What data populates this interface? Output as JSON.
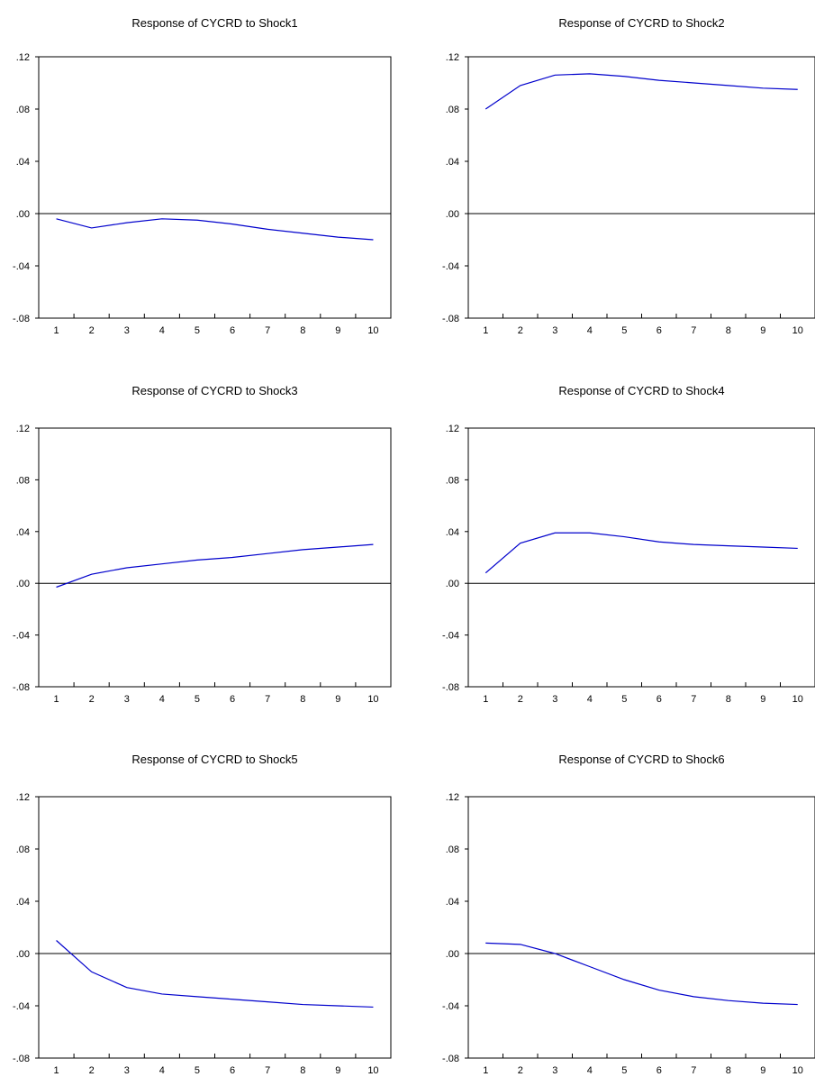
{
  "chart_data": [
    {
      "type": "line",
      "title": "Response of CYCRD to Shock1",
      "x": [
        1,
        2,
        3,
        4,
        5,
        6,
        7,
        8,
        9,
        10
      ],
      "series": [
        {
          "values": [
            -0.004,
            -0.011,
            -0.007,
            -0.004,
            -0.005,
            -0.008,
            -0.012,
            -0.015,
            -0.018,
            -0.02
          ]
        }
      ],
      "ylim": [
        -0.08,
        0.12
      ],
      "yticks": [
        0.12,
        0.08,
        0.04,
        0.0,
        -0.04,
        -0.08
      ],
      "ytick_labels": [
        ".12",
        ".08",
        ".04",
        ".00",
        "-.04",
        "-.08"
      ],
      "xtick_labels": [
        "1",
        "2",
        "3",
        "4",
        "5",
        "6",
        "7",
        "8",
        "9",
        "10"
      ],
      "series_color": "#0000cc",
      "zero_line": true
    },
    {
      "type": "line",
      "title": "Response of CYCRD to Shock2",
      "x": [
        1,
        2,
        3,
        4,
        5,
        6,
        7,
        8,
        9,
        10
      ],
      "series": [
        {
          "values": [
            0.08,
            0.098,
            0.106,
            0.107,
            0.105,
            0.102,
            0.1,
            0.098,
            0.096,
            0.095
          ]
        }
      ],
      "ylim": [
        -0.08,
        0.12
      ],
      "yticks": [
        0.12,
        0.08,
        0.04,
        0.0,
        -0.04,
        -0.08
      ],
      "ytick_labels": [
        ".12",
        ".08",
        ".04",
        ".00",
        "-.04",
        "-.08"
      ],
      "xtick_labels": [
        "1",
        "2",
        "3",
        "4",
        "5",
        "6",
        "7",
        "8",
        "9",
        "10"
      ],
      "series_color": "#0000cc",
      "zero_line": true
    },
    {
      "type": "line",
      "title": "Response of CYCRD to Shock3",
      "x": [
        1,
        2,
        3,
        4,
        5,
        6,
        7,
        8,
        9,
        10
      ],
      "series": [
        {
          "values": [
            -0.003,
            0.007,
            0.012,
            0.015,
            0.018,
            0.02,
            0.023,
            0.026,
            0.028,
            0.03
          ]
        }
      ],
      "ylim": [
        -0.08,
        0.12
      ],
      "yticks": [
        0.12,
        0.08,
        0.04,
        0.0,
        -0.04,
        -0.08
      ],
      "ytick_labels": [
        ".12",
        ".08",
        ".04",
        ".00",
        "-.04",
        "-.08"
      ],
      "xtick_labels": [
        "1",
        "2",
        "3",
        "4",
        "5",
        "6",
        "7",
        "8",
        "9",
        "10"
      ],
      "series_color": "#0000cc",
      "zero_line": true
    },
    {
      "type": "line",
      "title": "Response of CYCRD to Shock4",
      "x": [
        1,
        2,
        3,
        4,
        5,
        6,
        7,
        8,
        9,
        10
      ],
      "series": [
        {
          "values": [
            0.008,
            0.031,
            0.039,
            0.039,
            0.036,
            0.032,
            0.03,
            0.029,
            0.028,
            0.027
          ]
        }
      ],
      "ylim": [
        -0.08,
        0.12
      ],
      "yticks": [
        0.12,
        0.08,
        0.04,
        0.0,
        -0.04,
        -0.08
      ],
      "ytick_labels": [
        ".12",
        ".08",
        ".04",
        ".00",
        "-.04",
        "-.08"
      ],
      "xtick_labels": [
        "1",
        "2",
        "3",
        "4",
        "5",
        "6",
        "7",
        "8",
        "9",
        "10"
      ],
      "series_color": "#0000cc",
      "zero_line": true
    },
    {
      "type": "line",
      "title": "Response of CYCRD to Shock5",
      "x": [
        1,
        2,
        3,
        4,
        5,
        6,
        7,
        8,
        9,
        10
      ],
      "series": [
        {
          "values": [
            0.01,
            -0.014,
            -0.026,
            -0.031,
            -0.033,
            -0.035,
            -0.037,
            -0.039,
            -0.04,
            -0.041
          ]
        }
      ],
      "ylim": [
        -0.08,
        0.12
      ],
      "yticks": [
        0.12,
        0.08,
        0.04,
        0.0,
        -0.04,
        -0.08
      ],
      "ytick_labels": [
        ".12",
        ".08",
        ".04",
        ".00",
        "-.04",
        "-.08"
      ],
      "xtick_labels": [
        "1",
        "2",
        "3",
        "4",
        "5",
        "6",
        "7",
        "8",
        "9",
        "10"
      ],
      "series_color": "#0000cc",
      "zero_line": true
    },
    {
      "type": "line",
      "title": "Response of CYCRD to Shock6",
      "x": [
        1,
        2,
        3,
        4,
        5,
        6,
        7,
        8,
        9,
        10
      ],
      "series": [
        {
          "values": [
            0.008,
            0.007,
            0.0,
            -0.01,
            -0.02,
            -0.028,
            -0.033,
            -0.036,
            -0.038,
            -0.039
          ]
        }
      ],
      "ylim": [
        -0.08,
        0.12
      ],
      "yticks": [
        0.12,
        0.08,
        0.04,
        0.0,
        -0.04,
        -0.08
      ],
      "ytick_labels": [
        ".12",
        ".08",
        ".04",
        ".00",
        "-.04",
        "-.08"
      ],
      "xtick_labels": [
        "1",
        "2",
        "3",
        "4",
        "5",
        "6",
        "7",
        "8",
        "9",
        "10"
      ],
      "series_color": "#0000cc",
      "zero_line": true
    }
  ]
}
